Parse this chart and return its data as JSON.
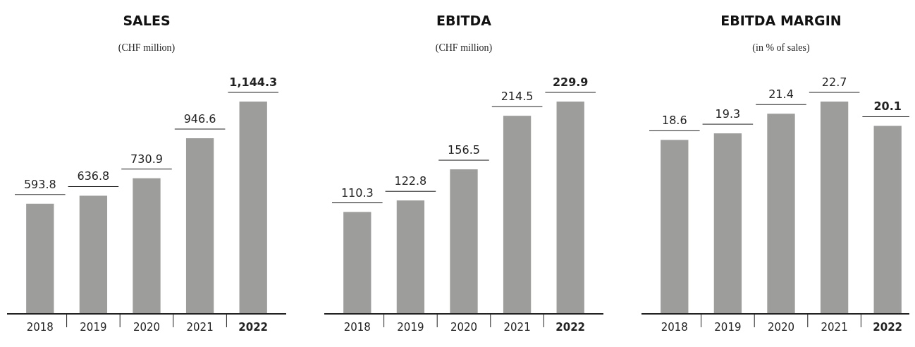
{
  "chart_data": [
    {
      "type": "bar",
      "title": "SALES",
      "subtitle": "(CHF million)",
      "categories": [
        "2018",
        "2019",
        "2020",
        "2021",
        "2022"
      ],
      "values": [
        593.8,
        636.8,
        730.9,
        946.6,
        1144.3
      ],
      "color": "#9d9d9c",
      "value_labels": [
        "593.8",
        "636.8",
        "730.9",
        "946.6",
        "1,144.3"
      ]
    },
    {
      "type": "bar",
      "title": "EBITDA",
      "subtitle": "(CHF million)",
      "categories": [
        "2018",
        "2019",
        "2020",
        "2021",
        "2022"
      ],
      "values": [
        110.3,
        122.8,
        156.5,
        214.5,
        229.9
      ],
      "color": "#9d9d9c",
      "data_labels": true
    },
    {
      "type": "bar",
      "title": "EBITDA MARGIN",
      "subtitle": "(in % of sales)",
      "categories": [
        "2018",
        "2019",
        "2020",
        "2021",
        "2022"
      ],
      "values": [
        18.6,
        19.3,
        21.4,
        22.7,
        20.1
      ],
      "color": "#9d9d9c",
      "data_labels": true
    }
  ]
}
